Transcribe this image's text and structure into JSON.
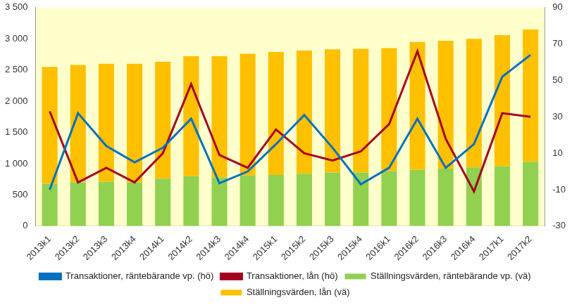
{
  "chart_data": {
    "type": "bar",
    "stacked": true,
    "grid": false,
    "legend": "bottom",
    "categories": [
      "2013k1",
      "2013k2",
      "2013k3",
      "2013k4",
      "2014k1",
      "2014k2",
      "2014k3",
      "2014k4",
      "2015k1",
      "2015k2",
      "2015k3",
      "2015k4",
      "2016k1",
      "2016k2",
      "2016k3",
      "2016k4",
      "2017k1",
      "2017k2"
    ],
    "ylim": [
      0,
      3500
    ],
    "yticks": [
      0,
      500,
      {
        "value": 1000,
        "label": "1 000"
      },
      {
        "value": 1500,
        "label": "1 500"
      },
      {
        "value": 2000,
        "label": "2 000"
      },
      {
        "value": 2500,
        "label": "2 500"
      },
      {
        "value": 3000,
        "label": "3 000"
      },
      {
        "value": 3500,
        "label": "3 500"
      }
    ],
    "y2lim": [
      -30,
      90
    ],
    "y2ticks": [
      -30,
      -10,
      10,
      30,
      50,
      70,
      90
    ],
    "series": [
      {
        "name": "Ställningsvärden, räntebärande vp. (vä)",
        "type": "bar",
        "color": "#92D050",
        "values": [
          680,
          700,
          710,
          700,
          760,
          800,
          780,
          810,
          820,
          840,
          860,
          860,
          880,
          900,
          920,
          940,
          960,
          1030
        ]
      },
      {
        "name": "Ställningsvärden, lån (vä)",
        "type": "bar",
        "color": "#FFC000",
        "values": [
          1870,
          1880,
          1890,
          1900,
          1870,
          1920,
          1940,
          1950,
          1970,
          1970,
          1970,
          1980,
          1970,
          2050,
          2050,
          2060,
          2100,
          2120
        ]
      },
      {
        "name": "Transaktioner, räntebärande vp. (hö)",
        "type": "line",
        "axis": "y2",
        "color": "#0070C0",
        "values": [
          -10,
          32,
          14,
          5,
          13,
          29,
          -6.5,
          0,
          15,
          31,
          13,
          -7,
          2,
          29,
          2,
          15,
          52,
          64
        ]
      },
      {
        "name": "Transaktioner, lån (hö)",
        "type": "line",
        "axis": "y2",
        "color": "#A50021",
        "values": [
          33,
          -6,
          2,
          -6,
          10,
          48,
          9,
          2,
          23,
          10,
          6,
          11,
          26,
          66,
          18,
          -11,
          32,
          30
        ]
      }
    ]
  }
}
